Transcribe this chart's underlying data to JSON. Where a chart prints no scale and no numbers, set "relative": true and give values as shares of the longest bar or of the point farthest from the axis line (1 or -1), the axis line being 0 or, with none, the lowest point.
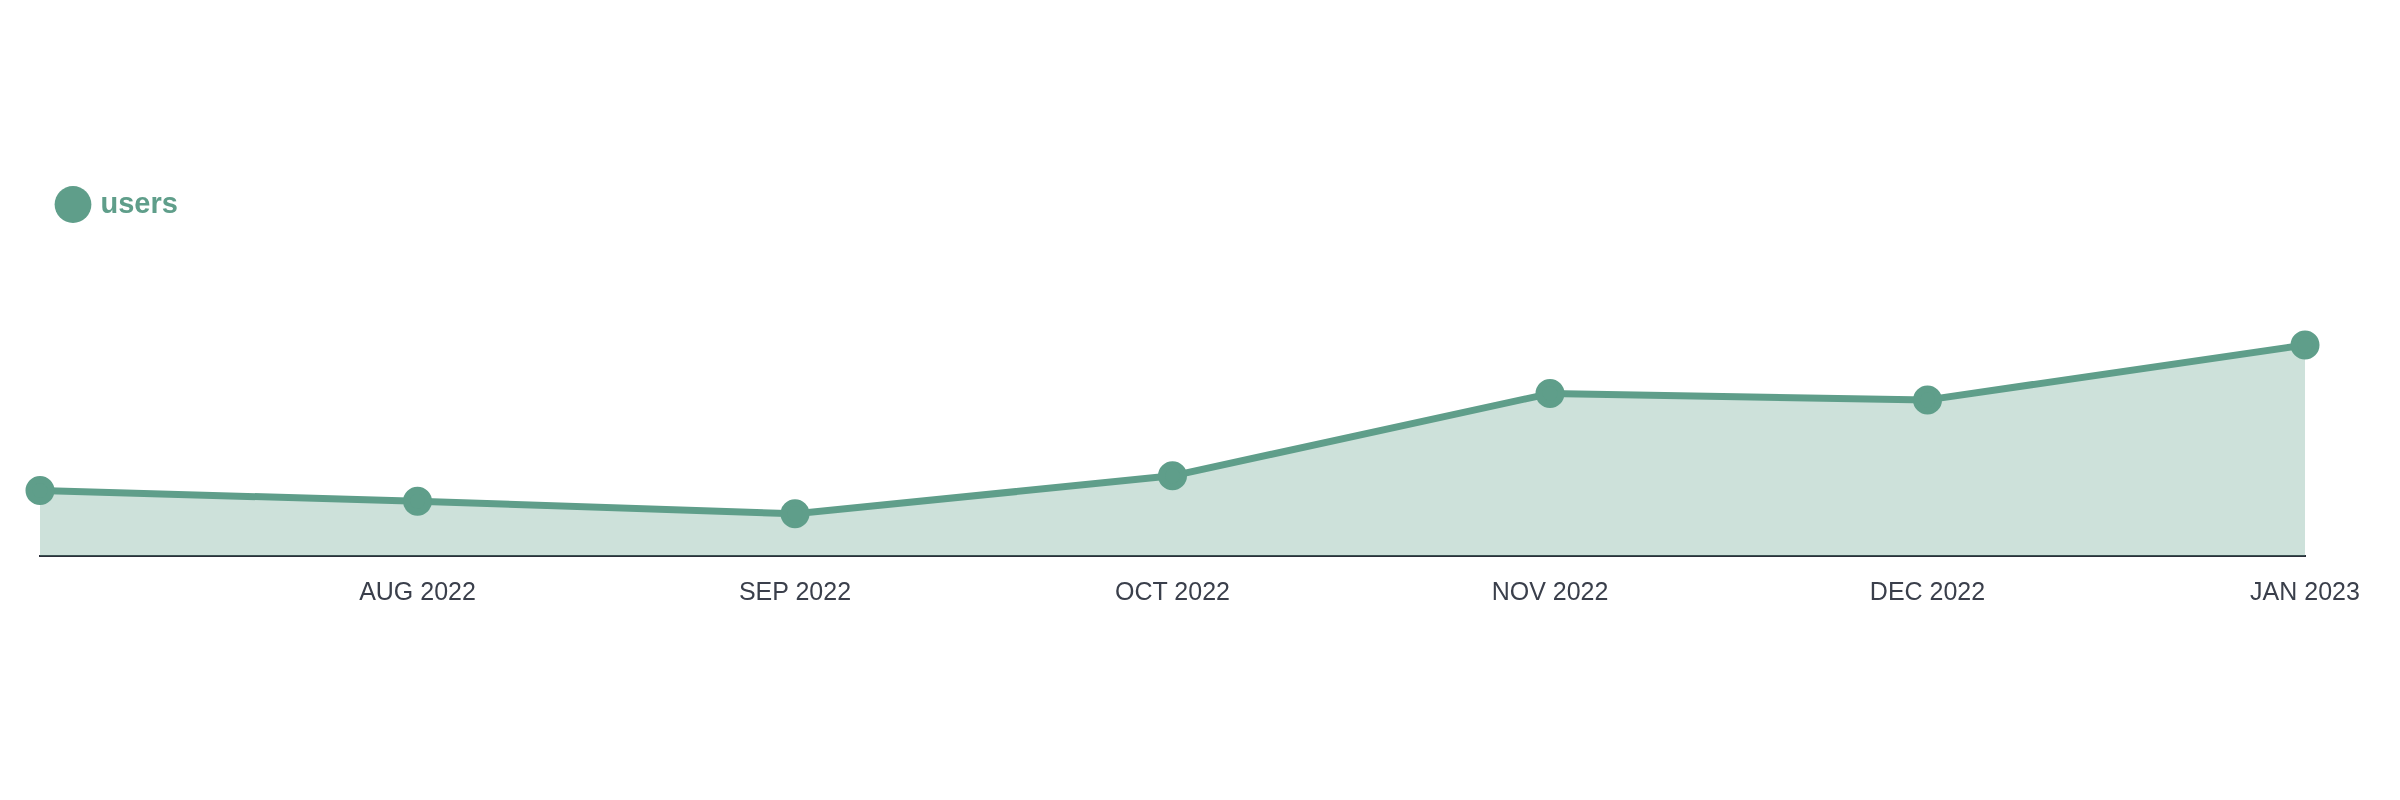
{
  "chart_data": {
    "type": "area",
    "categories": [
      null,
      "AUG 2022",
      "SEP 2022",
      "OCT 2022",
      "NOV 2022",
      "DEC 2022",
      "JAN 2023"
    ],
    "relative": true,
    "series": [
      {
        "name": "users",
        "color": "#5f9e8a",
        "values": [
          0.31,
          0.26,
          0.2,
          0.38,
          0.77,
          0.74,
          1
        ]
      }
    ],
    "legend": "top left",
    "marker": "circle",
    "grid": false
  }
}
